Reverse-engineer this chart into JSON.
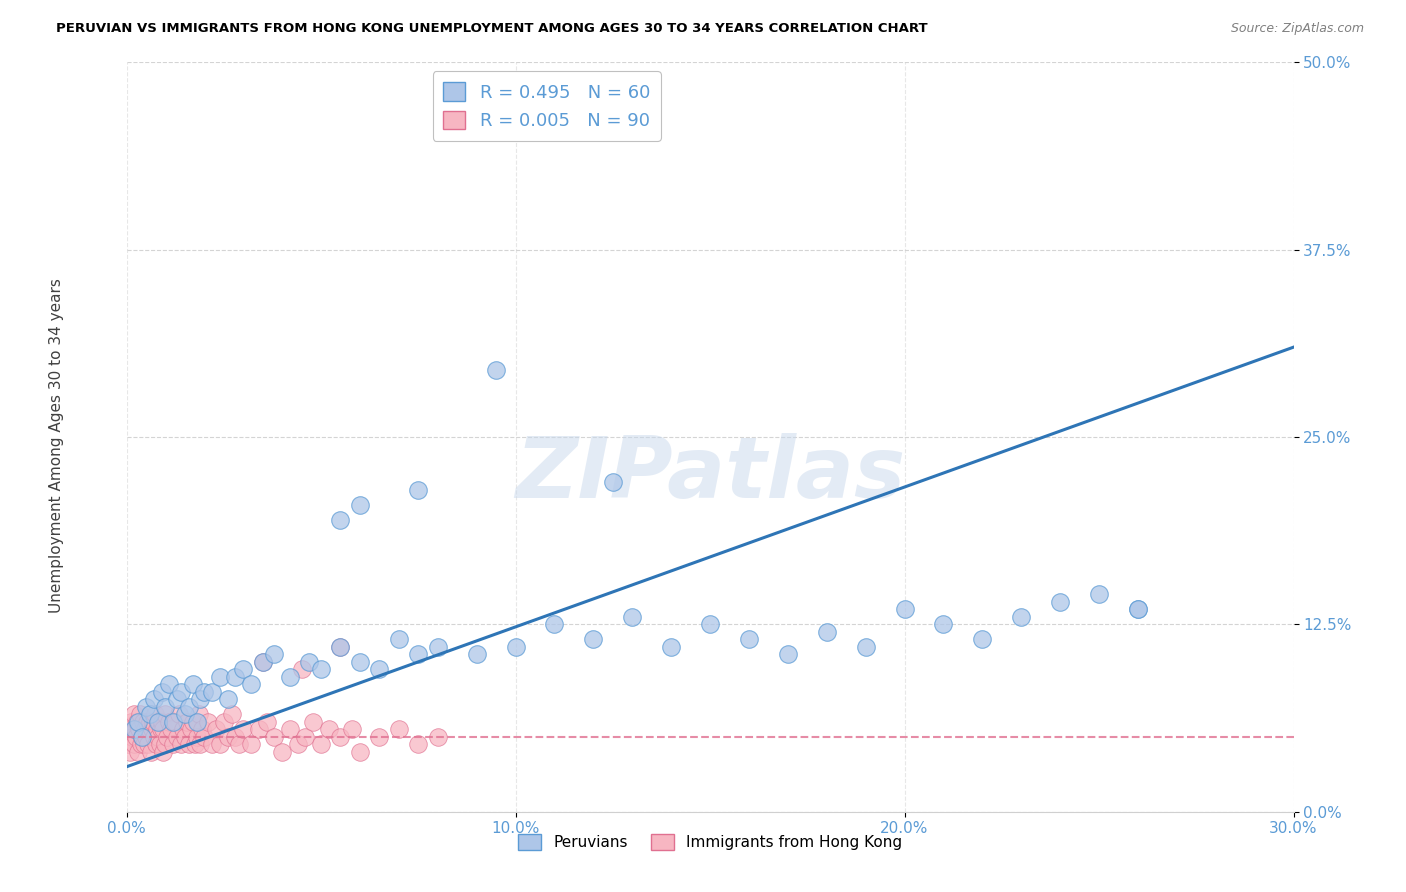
{
  "title": "PERUVIAN VS IMMIGRANTS FROM HONG KONG UNEMPLOYMENT AMONG AGES 30 TO 34 YEARS CORRELATION CHART",
  "source": "Source: ZipAtlas.com",
  "xlim": [
    0.0,
    30.0
  ],
  "ylim": [
    0.0,
    50.0
  ],
  "ylabel": "Unemployment Among Ages 30 to 34 years",
  "legend_blue_R": "0.495",
  "legend_blue_N": "60",
  "legend_pink_R": "0.005",
  "legend_pink_N": "90",
  "legend_label_blue": "Peruvians",
  "legend_label_pink": "Immigrants from Hong Kong",
  "blue_fill_color": "#aec6e8",
  "blue_edge_color": "#5b9bd5",
  "pink_fill_color": "#f7b6c2",
  "pink_edge_color": "#e07090",
  "blue_line_color": "#2e75b6",
  "pink_line_color": "#e07090",
  "watermark_text": "ZIPatlas",
  "background_color": "#ffffff",
  "grid_color": "#d0d0d0",
  "title_color": "#000000",
  "source_color": "#808080",
  "tick_color": "#5b9bd5",
  "ylabel_color": "#404040",
  "blue_x": [
    0.2,
    0.3,
    0.4,
    0.5,
    0.6,
    0.7,
    0.8,
    0.9,
    1.0,
    1.1,
    1.2,
    1.3,
    1.4,
    1.5,
    1.6,
    1.7,
    1.8,
    1.9,
    2.0,
    2.2,
    2.4,
    2.6,
    2.8,
    3.0,
    3.2,
    3.5,
    3.8,
    4.2,
    4.7,
    5.0,
    5.5,
    6.0,
    6.5,
    7.0,
    7.5,
    8.0,
    9.0,
    10.0,
    11.0,
    12.0,
    13.0,
    14.0,
    15.0,
    16.0,
    17.0,
    18.0,
    19.0,
    20.0,
    21.0,
    22.0,
    23.0,
    24.0,
    25.0,
    26.0,
    5.5,
    6.0,
    7.5,
    9.5,
    12.5,
    26.0
  ],
  "blue_y": [
    5.5,
    6.0,
    5.0,
    7.0,
    6.5,
    7.5,
    6.0,
    8.0,
    7.0,
    8.5,
    6.0,
    7.5,
    8.0,
    6.5,
    7.0,
    8.5,
    6.0,
    7.5,
    8.0,
    8.0,
    9.0,
    7.5,
    9.0,
    9.5,
    8.5,
    10.0,
    10.5,
    9.0,
    10.0,
    9.5,
    11.0,
    10.0,
    9.5,
    11.5,
    10.5,
    11.0,
    10.5,
    11.0,
    12.5,
    11.5,
    13.0,
    11.0,
    12.5,
    11.5,
    10.5,
    12.0,
    11.0,
    13.5,
    12.5,
    11.5,
    13.0,
    14.0,
    14.5,
    13.5,
    19.5,
    20.5,
    21.5,
    29.5,
    22.0,
    13.5
  ],
  "pink_x": [
    0.05,
    0.08,
    0.1,
    0.12,
    0.15,
    0.18,
    0.2,
    0.22,
    0.25,
    0.28,
    0.3,
    0.33,
    0.35,
    0.38,
    0.4,
    0.43,
    0.45,
    0.48,
    0.5,
    0.53,
    0.55,
    0.58,
    0.6,
    0.63,
    0.65,
    0.68,
    0.7,
    0.73,
    0.75,
    0.78,
    0.8,
    0.83,
    0.85,
    0.88,
    0.9,
    0.93,
    0.95,
    0.98,
    1.0,
    1.05,
    1.1,
    1.15,
    1.2,
    1.25,
    1.3,
    1.35,
    1.4,
    1.45,
    1.5,
    1.55,
    1.6,
    1.65,
    1.7,
    1.75,
    1.8,
    1.85,
    1.9,
    1.95,
    2.0,
    2.1,
    2.2,
    2.3,
    2.4,
    2.5,
    2.6,
    2.7,
    2.8,
    2.9,
    3.0,
    3.2,
    3.4,
    3.6,
    3.8,
    4.0,
    4.2,
    4.4,
    4.6,
    4.8,
    5.0,
    5.2,
    5.5,
    5.8,
    6.0,
    6.5,
    7.0,
    7.5,
    8.0,
    3.5,
    4.5,
    5.5
  ],
  "pink_y": [
    4.5,
    5.5,
    4.0,
    6.0,
    5.0,
    6.5,
    4.5,
    5.5,
    5.0,
    6.0,
    4.0,
    5.5,
    6.5,
    4.5,
    5.0,
    6.0,
    4.5,
    5.5,
    5.0,
    6.0,
    4.5,
    5.5,
    6.0,
    4.0,
    5.5,
    6.0,
    5.0,
    6.5,
    4.5,
    5.5,
    5.0,
    6.0,
    4.5,
    5.5,
    6.0,
    4.0,
    5.5,
    6.5,
    4.5,
    5.0,
    6.0,
    5.5,
    4.5,
    6.0,
    5.0,
    6.5,
    4.5,
    5.5,
    5.0,
    6.0,
    4.5,
    5.5,
    6.0,
    4.5,
    5.0,
    6.5,
    4.5,
    5.5,
    5.0,
    6.0,
    4.5,
    5.5,
    4.5,
    6.0,
    5.0,
    6.5,
    5.0,
    4.5,
    5.5,
    4.5,
    5.5,
    6.0,
    5.0,
    4.0,
    5.5,
    4.5,
    5.0,
    6.0,
    4.5,
    5.5,
    5.0,
    5.5,
    4.0,
    5.0,
    5.5,
    4.5,
    5.0,
    10.0,
    9.5,
    11.0
  ]
}
